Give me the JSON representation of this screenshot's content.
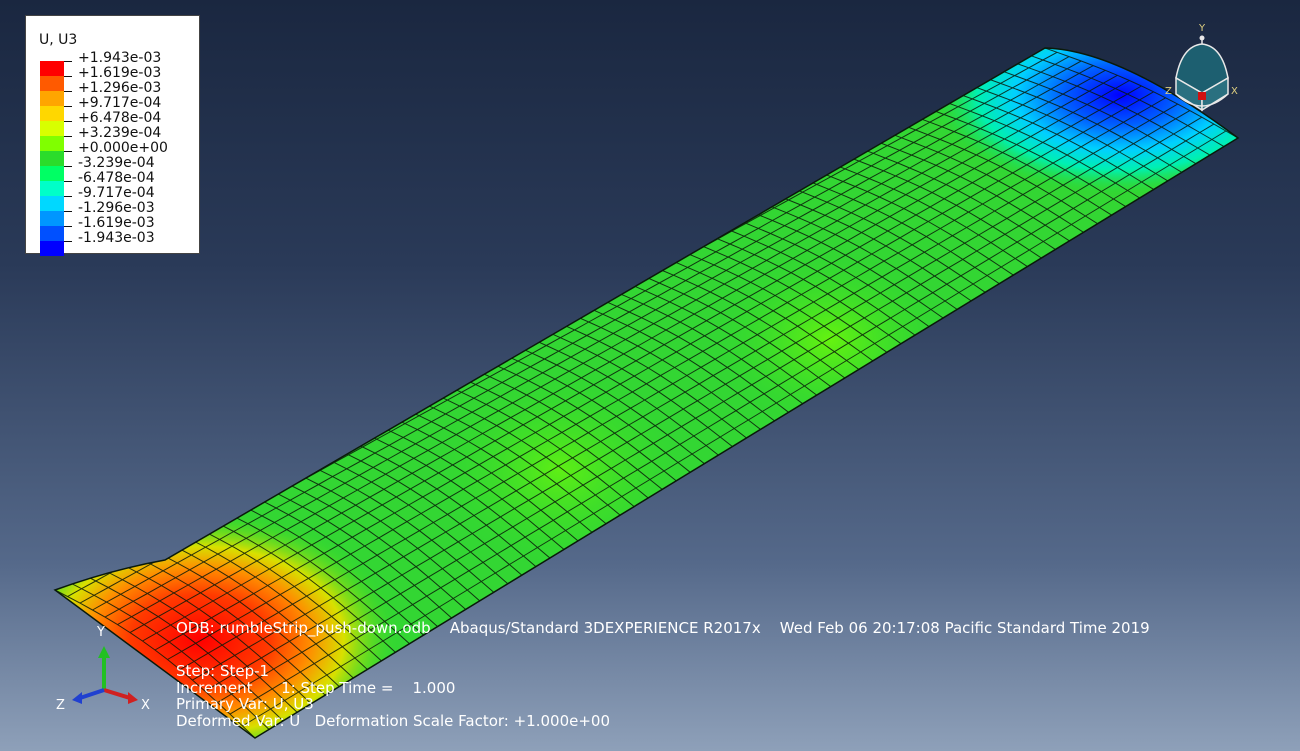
{
  "legend": {
    "title": "U, U3",
    "labels": [
      "+1.943e-03",
      "+1.619e-03",
      "+1.296e-03",
      "+9.717e-04",
      "+6.478e-04",
      "+3.239e-04",
      "+0.000e+00",
      "-3.239e-04",
      "-6.478e-04",
      "-9.717e-04",
      "-1.296e-03",
      "-1.619e-03",
      "-1.943e-03"
    ],
    "colors": [
      "#ff0000",
      "#ff5a00",
      "#ffa500",
      "#ffd700",
      "#d8ff00",
      "#80ff00",
      "#2bdc2b",
      "#00ff64",
      "#00ffc8",
      "#00d8ff",
      "#0096ff",
      "#0050ff",
      "#0000ff"
    ]
  },
  "info": {
    "odb": "ODB: rumbleStrip_push-down.odb    Abaqus/Standard 3DEXPERIENCE R2017x    Wed Feb 06 20:17:08 Pacific Standard Time 2019",
    "step": "Step: Step-1",
    "increment": "Increment      1: Step Time =    1.000",
    "primary": "Primary Var: U, U3",
    "deformed": "Deformed Var: U   Deformation Scale Factor: +1.000e+00"
  },
  "triad": {
    "x": "X",
    "y": "Y",
    "z": "Z"
  },
  "view_cube": {
    "x": "X",
    "y": "Y",
    "z": "Z"
  }
}
